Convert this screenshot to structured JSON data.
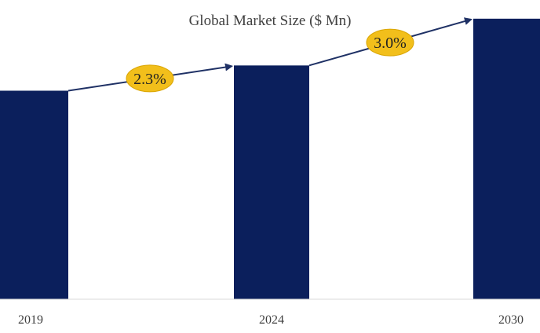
{
  "chart_data": {
    "type": "bar",
    "title": "Global Market Size ($ Mn)",
    "xlabel": "",
    "ylabel": "",
    "categories": [
      "2019",
      "2024",
      "2030"
    ],
    "values": [
      223,
      250,
      300
    ],
    "ylim": [
      0,
      320
    ],
    "grid": false,
    "legend": "none",
    "bar_color": "#0b1f5c",
    "annotations": [
      {
        "label": "2.3%",
        "from": "2019",
        "to": "2024"
      },
      {
        "label": "3.0%",
        "from": "2024",
        "to": "2030"
      }
    ],
    "annotation_fill": "#f2bf1b",
    "arrow_color": "#1f3165"
  }
}
